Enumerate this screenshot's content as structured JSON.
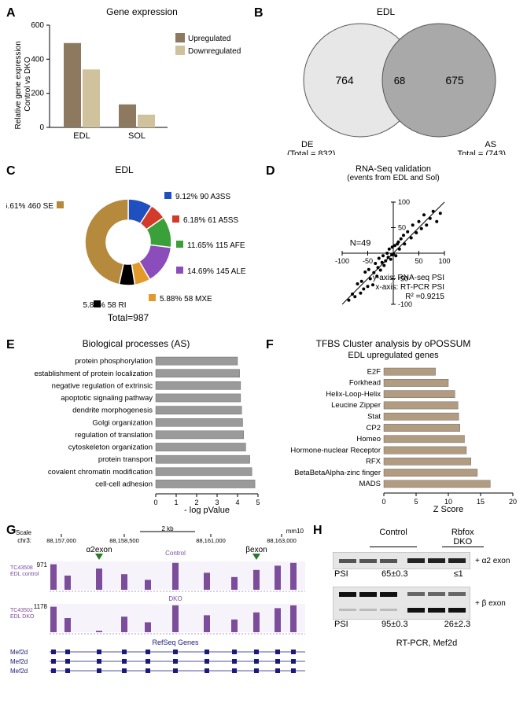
{
  "panelA": {
    "label": "A",
    "title": "Gene expression",
    "ylabel": "Relative gene expression\nControl vs DKO",
    "legend": {
      "up": "Upregulated",
      "down": "Downregulated"
    },
    "categories": [
      "EDL",
      "SOL"
    ],
    "values": {
      "up": [
        495,
        135
      ],
      "down": [
        340,
        75
      ]
    },
    "ylim": [
      0,
      600
    ],
    "ytick_step": 200,
    "colors": {
      "up": "#8d7960",
      "down": "#d0c29d"
    },
    "bar_width": 0.35
  },
  "panelB": {
    "label": "B",
    "title": "EDL",
    "left_count": 764,
    "overlap": 68,
    "right_count": 675,
    "left_label": "DE",
    "left_total_label": "(Total = 832)",
    "right_label": "AS",
    "right_total_label": "Total = (743)",
    "colors": {
      "left": "#e7e7e7",
      "right": "#a9a9a9",
      "stroke": "#555555"
    }
  },
  "panelC": {
    "label": "C",
    "title": "EDL",
    "total_label": "Total=987",
    "slices": [
      {
        "pct": 9.12,
        "n": 90,
        "name": "A3SS",
        "color": "#2050c0"
      },
      {
        "pct": 6.18,
        "n": 61,
        "name": "A5SS",
        "color": "#d23a2a"
      },
      {
        "pct": 11.65,
        "n": 115,
        "name": "AFE",
        "color": "#3aa03a"
      },
      {
        "pct": 14.69,
        "n": 145,
        "name": "ALE",
        "color": "#8a4dbb"
      },
      {
        "pct": 5.88,
        "n": 58,
        "name": "MXE",
        "color": "#e29a2a"
      },
      {
        "pct": 5.88,
        "n": 58,
        "name": "RI",
        "color": "#000000"
      },
      {
        "pct": 46.61,
        "n": 460,
        "name": "SE",
        "color": "#b68a3c"
      }
    ],
    "label_fontsize": 10
  },
  "panelD": {
    "label": "D",
    "title": "RNA-Seq validation",
    "subtitle": "(events from EDL and Sol)",
    "n_label": "N=49",
    "xlim": [
      -100,
      100
    ],
    "ylim": [
      -100,
      100
    ],
    "tick_step": 50,
    "notes": [
      "y-axis: RNA-seq PSI",
      "x-axis: RT-PCR PSI"
    ],
    "r2_label": "R² =0.9215",
    "r2_value": 0.9215,
    "points": [
      [
        -87,
        -92
      ],
      [
        -80,
        -80
      ],
      [
        -75,
        -85
      ],
      [
        -70,
        -60
      ],
      [
        -64,
        -78
      ],
      [
        -62,
        -55
      ],
      [
        -58,
        -70
      ],
      [
        -55,
        -37
      ],
      [
        -50,
        -65
      ],
      [
        -48,
        -32
      ],
      [
        -45,
        -50
      ],
      [
        -40,
        -62
      ],
      [
        -38,
        -38
      ],
      [
        -35,
        -20
      ],
      [
        -32,
        -45
      ],
      [
        -30,
        -28
      ],
      [
        -28,
        -10
      ],
      [
        -25,
        -33
      ],
      [
        -22,
        -18
      ],
      [
        -20,
        -5
      ],
      [
        -18,
        -24
      ],
      [
        -15,
        -15
      ],
      [
        -12,
        0
      ],
      [
        -10,
        -8
      ],
      [
        -8,
        8
      ],
      [
        -5,
        -12
      ],
      [
        -3,
        -3
      ],
      [
        -2,
        12
      ],
      [
        0,
        -2
      ],
      [
        3,
        15
      ],
      [
        5,
        -5
      ],
      [
        8,
        18
      ],
      [
        10,
        22
      ],
      [
        12,
        8
      ],
      [
        15,
        28
      ],
      [
        20,
        35
      ],
      [
        22,
        18
      ],
      [
        28,
        42
      ],
      [
        35,
        30
      ],
      [
        38,
        55
      ],
      [
        45,
        40
      ],
      [
        50,
        62
      ],
      [
        55,
        48
      ],
      [
        60,
        75
      ],
      [
        65,
        55
      ],
      [
        72,
        68
      ],
      [
        78,
        82
      ],
      [
        85,
        62
      ],
      [
        92,
        78
      ]
    ],
    "point_color": "#000000"
  },
  "panelE": {
    "label": "E",
    "title": "Biological processes (AS)",
    "xlabel": "- log pValue",
    "xlim": [
      0,
      5
    ],
    "xtick_step": 1,
    "items": [
      {
        "name": "protein phosphorylation",
        "val": 4.0
      },
      {
        "name": "establishment of  protein localization",
        "val": 4.1
      },
      {
        "name": "negative regulation of extrinsic",
        "val": 4.15
      },
      {
        "name": "apoptotic signaling pathway",
        "val": 4.15
      },
      {
        "name": "dendrite morphogenesis",
        "val": 4.2
      },
      {
        "name": "Golgi organization",
        "val": 4.25
      },
      {
        "name": "regulation of translation",
        "val": 4.3
      },
      {
        "name": "cytoskeleton organization",
        "val": 4.4
      },
      {
        "name": "protein transport",
        "val": 4.6
      },
      {
        "name": "covalent chromatin modification",
        "val": 4.7
      },
      {
        "name": "cell-cell adhesion",
        "val": 4.85
      }
    ],
    "bar_color": "#9a9a9a"
  },
  "panelF": {
    "label": "F",
    "title": "TFBS Cluster analysis by oPOSSUM",
    "subtitle": "EDL upregulated genes",
    "xlabel": "Z Score",
    "xlim": [
      0,
      20
    ],
    "xtick_step": 5,
    "items": [
      {
        "name": "E2F",
        "val": 8.0
      },
      {
        "name": "Forkhead",
        "val": 10.0
      },
      {
        "name": "Helix-Loop-Helix",
        "val": 11.0
      },
      {
        "name": "Leucine Zipper",
        "val": 11.5
      },
      {
        "name": "Stat",
        "val": 11.6
      },
      {
        "name": "CP2",
        "val": 11.8
      },
      {
        "name": "Homeo",
        "val": 12.5
      },
      {
        "name": "Hormone-nuclear Receptor",
        "val": 12.8
      },
      {
        "name": "RFX",
        "val": 13.5
      },
      {
        "name": "BetaBetaAlpha-zinc finger",
        "val": 14.5
      },
      {
        "name": "MADS",
        "val": 16.5
      }
    ],
    "bar_color": "#b29c81"
  },
  "panelG": {
    "label": "G",
    "scale_label": "Scale",
    "scale_value": "2 kb",
    "assembly": "mm10",
    "chrom": "chr3:",
    "coords": [
      "88,157,000",
      "88,158,500",
      "88,161,000",
      "88,163,000"
    ],
    "alpha_label": "α2exon",
    "beta_label": "βexon",
    "track1_id": "TC43508",
    "track1_name": "EDL control",
    "track1_max": 971,
    "track1_cond": "Control",
    "track2_id": "TC43502",
    "track2_name": "EDL DKO",
    "track2_max": 1178,
    "track2_cond": "DKO",
    "refseq_label": "RefSeq Genes",
    "gene_labels": [
      "Mef2d",
      "Mef2d",
      "Mef2d"
    ],
    "track_color": "#7c4d9b"
  },
  "panelH": {
    "label": "H",
    "header_control": "Control",
    "header_dko": "Rbfox\nDKO",
    "psi_label": "PSI",
    "row1_band": "+ α2 exon",
    "row1_ctrl": "65±0.3",
    "row1_dko": "≤1",
    "row2_band": "+ β exon",
    "row2_ctrl": "95±0.3",
    "row2_dko": "26±2.3",
    "footer": "RT-PCR, Mef2d"
  }
}
